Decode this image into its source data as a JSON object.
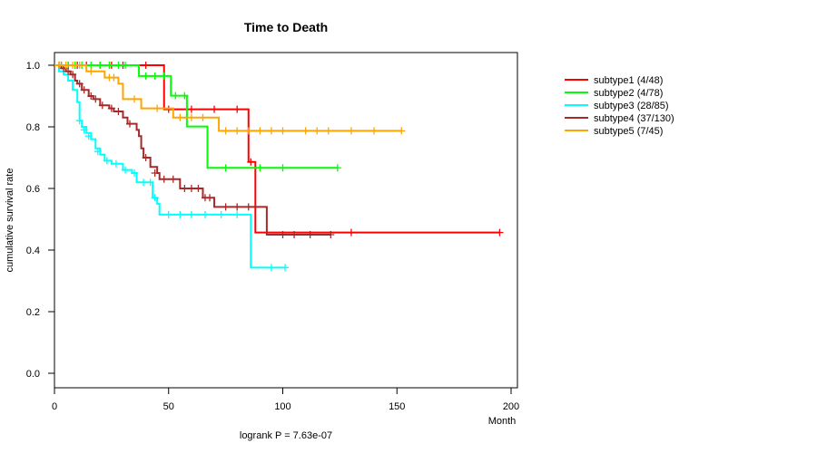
{
  "chart_data": {
    "type": "line",
    "title": "Time to Death",
    "xlabel": "Month",
    "ylabel": "cumulative survival rate",
    "xlim": [
      0,
      200
    ],
    "ylim": [
      0,
      1
    ],
    "xticks": [
      "0",
      "50",
      "100",
      "150",
      "200"
    ],
    "yticks": [
      "0.0",
      "0.2",
      "0.4",
      "0.6",
      "0.8",
      "1.0"
    ],
    "annotation": "logrank P = 7.63e-07",
    "legend_position": "top-right",
    "series": [
      {
        "name": "subtype1 (4/48)",
        "color": "#ff0000",
        "steps": [
          [
            0,
            1
          ],
          [
            48,
            0.857
          ],
          [
            85,
            0.686
          ],
          [
            88,
            0.457
          ],
          [
            195,
            0.457
          ]
        ],
        "censors": [
          [
            3,
            1
          ],
          [
            6,
            1
          ],
          [
            10,
            1
          ],
          [
            14,
            1
          ],
          [
            20,
            1
          ],
          [
            25,
            1
          ],
          [
            30,
            1
          ],
          [
            40,
            1
          ],
          [
            50,
            0.857
          ],
          [
            60,
            0.857
          ],
          [
            70,
            0.857
          ],
          [
            80,
            0.857
          ],
          [
            86,
            0.686
          ],
          [
            130,
            0.457
          ],
          [
            195,
            0.457
          ]
        ]
      },
      {
        "name": "subtype2 (4/78)",
        "color": "#00ff00",
        "steps": [
          [
            0,
            1
          ],
          [
            37,
            0.965
          ],
          [
            51,
            0.901
          ],
          [
            58,
            0.801
          ],
          [
            67,
            0.667
          ],
          [
            124,
            0.667
          ]
        ],
        "censors": [
          [
            3,
            1
          ],
          [
            6,
            1
          ],
          [
            9,
            1
          ],
          [
            12,
            1
          ],
          [
            16,
            1
          ],
          [
            20,
            1
          ],
          [
            24,
            1
          ],
          [
            28,
            1
          ],
          [
            31,
            1
          ],
          [
            40,
            0.965
          ],
          [
            44,
            0.965
          ],
          [
            48,
            0.965
          ],
          [
            53,
            0.901
          ],
          [
            57,
            0.901
          ],
          [
            75,
            0.667
          ],
          [
            90,
            0.667
          ],
          [
            100,
            0.667
          ],
          [
            124,
            0.667
          ]
        ]
      },
      {
        "name": "subtype3 (28/85)",
        "color": "#00ffff",
        "steps": [
          [
            0,
            1
          ],
          [
            2,
            0.98
          ],
          [
            4,
            0.97
          ],
          [
            6,
            0.95
          ],
          [
            8,
            0.92
          ],
          [
            10,
            0.88
          ],
          [
            11,
            0.82
          ],
          [
            12,
            0.8
          ],
          [
            14,
            0.78
          ],
          [
            16,
            0.76
          ],
          [
            18,
            0.73
          ],
          [
            20,
            0.71
          ],
          [
            22,
            0.69
          ],
          [
            25,
            0.68
          ],
          [
            30,
            0.66
          ],
          [
            34,
            0.65
          ],
          [
            36,
            0.62
          ],
          [
            43,
            0.57
          ],
          [
            45,
            0.55
          ],
          [
            46,
            0.515
          ],
          [
            86,
            0.343
          ],
          [
            101,
            0.343
          ]
        ],
        "censors": [
          [
            11,
            0.82
          ],
          [
            13,
            0.79
          ],
          [
            15,
            0.77
          ],
          [
            19,
            0.72
          ],
          [
            23,
            0.69
          ],
          [
            27,
            0.68
          ],
          [
            31,
            0.66
          ],
          [
            35,
            0.65
          ],
          [
            39,
            0.62
          ],
          [
            42,
            0.62
          ],
          [
            44,
            0.57
          ],
          [
            50,
            0.515
          ],
          [
            55,
            0.515
          ],
          [
            60,
            0.515
          ],
          [
            66,
            0.515
          ],
          [
            73,
            0.515
          ],
          [
            80,
            0.515
          ],
          [
            95,
            0.343
          ],
          [
            101,
            0.343
          ]
        ]
      },
      {
        "name": "subtype4 (37/130)",
        "color": "#a52a2a",
        "steps": [
          [
            0,
            1
          ],
          [
            3,
            0.99
          ],
          [
            5,
            0.98
          ],
          [
            7,
            0.97
          ],
          [
            9,
            0.95
          ],
          [
            10,
            0.94
          ],
          [
            12,
            0.92
          ],
          [
            15,
            0.9
          ],
          [
            17,
            0.89
          ],
          [
            20,
            0.87
          ],
          [
            24,
            0.86
          ],
          [
            26,
            0.85
          ],
          [
            30,
            0.83
          ],
          [
            32,
            0.81
          ],
          [
            36,
            0.79
          ],
          [
            37,
            0.77
          ],
          [
            38,
            0.73
          ],
          [
            39,
            0.7
          ],
          [
            42,
            0.67
          ],
          [
            45,
            0.65
          ],
          [
            46,
            0.63
          ],
          [
            55,
            0.6
          ],
          [
            65,
            0.57
          ],
          [
            70,
            0.54
          ],
          [
            93,
            0.45
          ],
          [
            121,
            0.45
          ]
        ],
        "censors": [
          [
            2,
            1
          ],
          [
            4,
            0.99
          ],
          [
            6,
            0.98
          ],
          [
            8,
            0.97
          ],
          [
            11,
            0.94
          ],
          [
            13,
            0.92
          ],
          [
            16,
            0.9
          ],
          [
            18,
            0.89
          ],
          [
            21,
            0.87
          ],
          [
            25,
            0.86
          ],
          [
            28,
            0.85
          ],
          [
            33,
            0.81
          ],
          [
            40,
            0.7
          ],
          [
            44,
            0.65
          ],
          [
            48,
            0.63
          ],
          [
            52,
            0.63
          ],
          [
            57,
            0.6
          ],
          [
            60,
            0.6
          ],
          [
            63,
            0.6
          ],
          [
            66,
            0.57
          ],
          [
            68,
            0.57
          ],
          [
            75,
            0.54
          ],
          [
            80,
            0.54
          ],
          [
            85,
            0.54
          ],
          [
            100,
            0.45
          ],
          [
            105,
            0.45
          ],
          [
            112,
            0.45
          ],
          [
            121,
            0.45
          ]
        ]
      },
      {
        "name": "subtype5 (7/45)",
        "color": "#ffa500",
        "steps": [
          [
            0,
            1
          ],
          [
            14,
            0.98
          ],
          [
            22,
            0.96
          ],
          [
            28,
            0.94
          ],
          [
            30,
            0.89
          ],
          [
            38,
            0.86
          ],
          [
            52,
            0.83
          ],
          [
            72,
            0.787
          ],
          [
            152,
            0.787
          ]
        ],
        "censors": [
          [
            2,
            1
          ],
          [
            5,
            1
          ],
          [
            8,
            1
          ],
          [
            11,
            1
          ],
          [
            16,
            0.98
          ],
          [
            24,
            0.96
          ],
          [
            26,
            0.96
          ],
          [
            35,
            0.89
          ],
          [
            45,
            0.86
          ],
          [
            55,
            0.83
          ],
          [
            60,
            0.83
          ],
          [
            65,
            0.83
          ],
          [
            75,
            0.787
          ],
          [
            80,
            0.787
          ],
          [
            85,
            0.787
          ],
          [
            90,
            0.787
          ],
          [
            95,
            0.787
          ],
          [
            100,
            0.787
          ],
          [
            110,
            0.787
          ],
          [
            115,
            0.787
          ],
          [
            120,
            0.787
          ],
          [
            130,
            0.787
          ],
          [
            140,
            0.787
          ],
          [
            152,
            0.787
          ]
        ]
      }
    ]
  }
}
